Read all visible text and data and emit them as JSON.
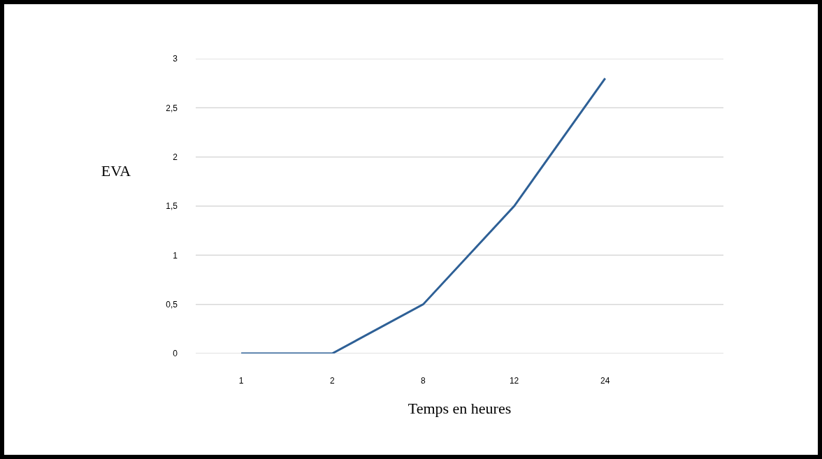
{
  "chart_data": {
    "type": "line",
    "xlabel": "Temps en heures",
    "ylabel": "EVA",
    "categories": [
      "1",
      "2",
      "8",
      "12",
      "24"
    ],
    "series": [
      {
        "color": "#2e6096",
        "values": [
          0,
          0,
          0.5,
          1.5,
          2.8
        ]
      }
    ],
    "ylim": [
      0,
      3
    ],
    "yticks": [
      0,
      {
        "value": 0.5,
        "label": "0,5"
      },
      1,
      {
        "value": 1.5,
        "label": "1,5"
      },
      2,
      {
        "value": 2.5,
        "label": "2,5"
      },
      3
    ],
    "grid": "y",
    "marker": "none",
    "line_style": "solid"
  }
}
